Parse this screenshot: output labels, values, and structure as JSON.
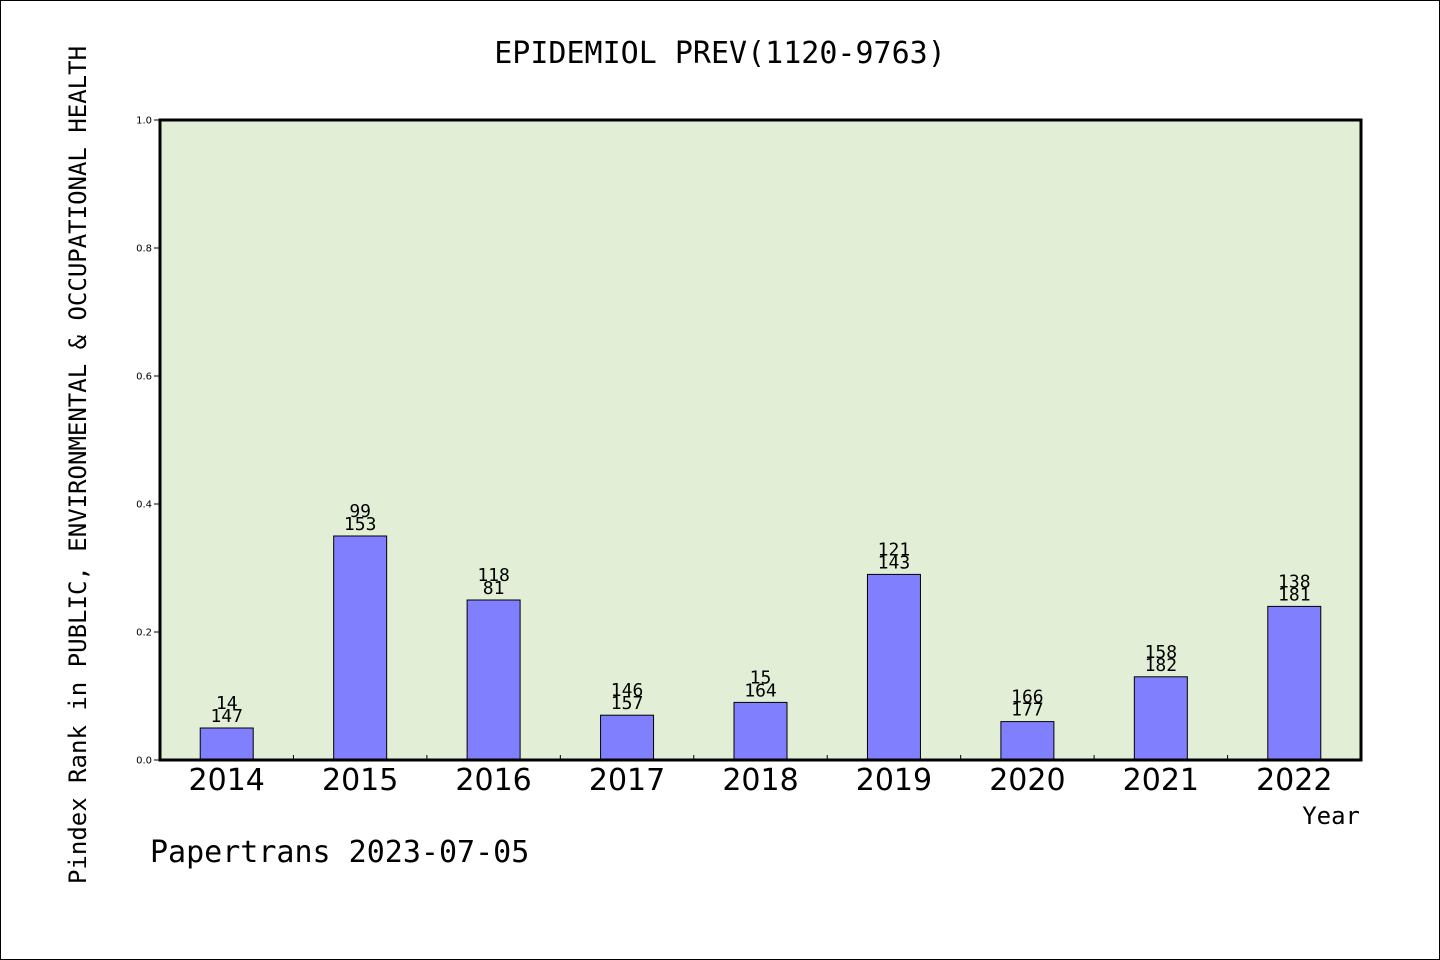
{
  "chart_data": {
    "type": "bar",
    "title": "EPIDEMIOL PREV(1120-9763)",
    "xlabel": "Year",
    "ylabel": "Pindex Rank in PUBLIC, ENVIRONMENTAL & OCCUPATIONAL HEALTH",
    "ylim": [
      0,
      1.0
    ],
    "yticks": [
      "0.0",
      "0.2",
      "0.4",
      "0.6",
      "0.8",
      "1.0"
    ],
    "categories": [
      "2014",
      "2015",
      "2016",
      "2017",
      "2018",
      "2019",
      "2020",
      "2021",
      "2022"
    ],
    "values": [
      0.05,
      0.35,
      0.25,
      0.07,
      0.09,
      0.29,
      0.06,
      0.13,
      0.24
    ],
    "labels_top": [
      "14",
      "99",
      "118",
      "146",
      "15",
      "121",
      "166",
      "158",
      "138"
    ],
    "labels_bottom": [
      "147",
      "153",
      "81",
      "157",
      "164",
      "143",
      "177",
      "182",
      "181"
    ],
    "grid": false,
    "colors": {
      "bar": "#8080ff",
      "plot_bg": "#e2efd6"
    }
  },
  "footer": "Papertrans 2023-07-05"
}
